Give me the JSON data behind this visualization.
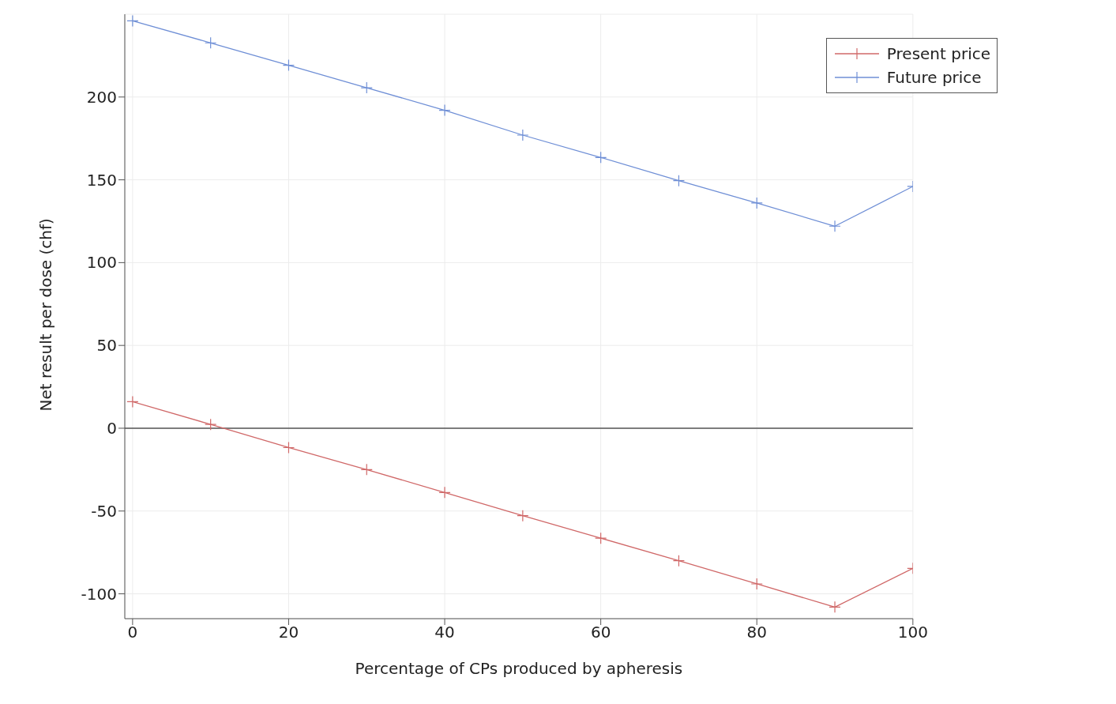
{
  "chart_data": {
    "type": "line",
    "xlabel": "Percentage of CPs produced by apheresis",
    "ylabel": "Net result per dose (chf)",
    "x": [
      0,
      10,
      20,
      30,
      40,
      50,
      60,
      70,
      80,
      90,
      100
    ],
    "series": [
      {
        "name": "Present price",
        "color": "#d06868",
        "values": [
          16,
          2.3,
          -11.7,
          -25,
          -38.8,
          -52.8,
          -66.4,
          -80,
          -94,
          -108,
          -84.6
        ]
      },
      {
        "name": "Future price",
        "color": "#6f8fd6",
        "values": [
          246,
          232.7,
          219.2,
          205.6,
          192,
          177,
          163.5,
          149.5,
          136,
          122,
          146
        ]
      }
    ],
    "xlim": [
      -1,
      100
    ],
    "xticks": [
      0,
      20,
      40,
      60,
      80,
      100
    ],
    "ylim": [
      -115,
      250
    ],
    "yticks": [
      -100,
      -50,
      0,
      50,
      100,
      150,
      200
    ],
    "ref_lines": [
      {
        "axis": "y",
        "value": 0,
        "color": "#555555"
      }
    ],
    "grid": true,
    "legend": "top right",
    "marker": "cross",
    "line_style": "solid"
  }
}
